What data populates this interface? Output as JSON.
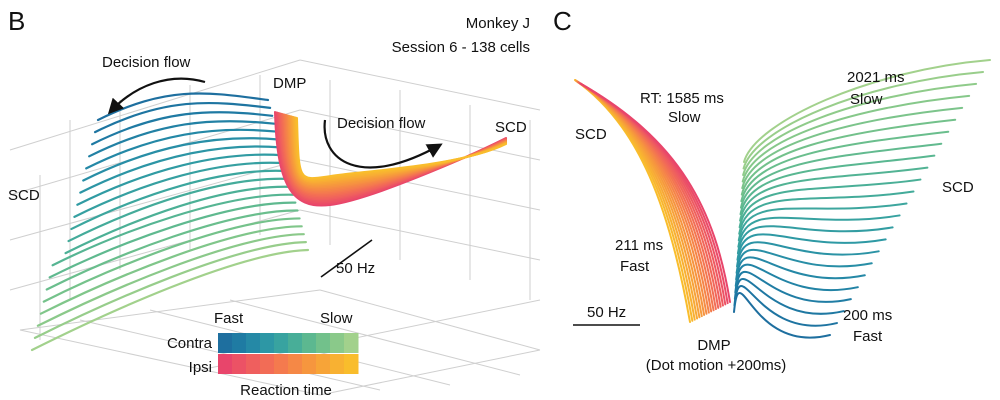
{
  "panels": [
    {
      "letter": "B",
      "subject": "Monkey J",
      "session": "Session 6 - 138 cells",
      "flow_left": "Decision flow",
      "flow_right": "Decision flow",
      "dmp": "DMP",
      "scd_left": "SCD",
      "scd_right": "SCD",
      "scale": "50 Hz",
      "legend": {
        "fast": "Fast",
        "slow": "Slow",
        "contra": "Contra",
        "ipsi": "Ipsi",
        "axis": "Reaction time",
        "contra_colors": [
          "#1e6f9f",
          "#1f7ba3",
          "#2589a6",
          "#2d97a5",
          "#38a3a0",
          "#48ae98",
          "#5cb890",
          "#72c18b",
          "#8ac98a",
          "#a2d18c"
        ],
        "ipsi_colors": [
          "#e8456b",
          "#ec5265",
          "#ef5f5e",
          "#f26c56",
          "#f47a4e",
          "#f58846",
          "#f6963e",
          "#f7a438",
          "#f8b132",
          "#f9bd2c"
        ]
      }
    },
    {
      "letter": "C",
      "rt_slow": "RT: 1585 ms",
      "rt_slow_word": "Slow",
      "rt_fast": "211 ms",
      "rt_fast_word": "Fast",
      "right_slow": "2021 ms",
      "right_slow_word": "Slow",
      "right_fast": "200 ms",
      "right_fast_word": "Fast",
      "scd_left": "SCD",
      "scd_right": "SCD",
      "dmp": "DMP",
      "dmp_note": "(Dot motion +200ms)",
      "scale": "50 Hz"
    }
  ]
}
